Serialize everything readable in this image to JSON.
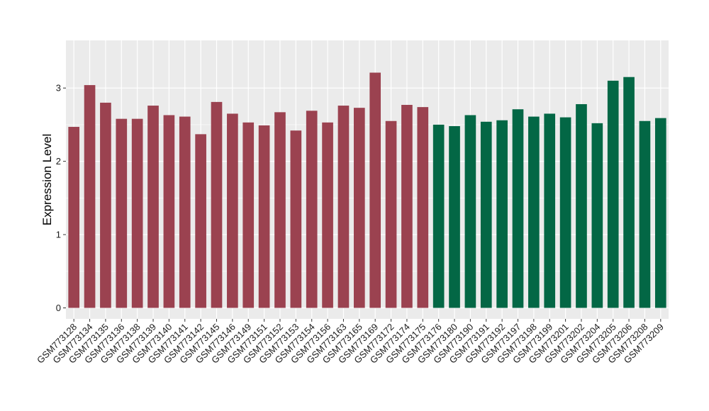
{
  "chart_data": {
    "type": "bar",
    "title": "",
    "xlabel": "",
    "ylabel": "Expression Level",
    "ylim": [
      -0.15,
      3.65
    ],
    "yticks": [
      0,
      1,
      2,
      3
    ],
    "grid": true,
    "legend": "none",
    "categories": [
      "GSM773128",
      "GSM773134",
      "GSM773135",
      "GSM773136",
      "GSM773138",
      "GSM773139",
      "GSM773140",
      "GSM773141",
      "GSM773142",
      "GSM773145",
      "GSM773146",
      "GSM773149",
      "GSM773151",
      "GSM773152",
      "GSM773153",
      "GSM773154",
      "GSM773156",
      "GSM773163",
      "GSM773165",
      "GSM773169",
      "GSM773172",
      "GSM773174",
      "GSM773175",
      "GSM773176",
      "GSM773180",
      "GSM773190",
      "GSM773191",
      "GSM773192",
      "GSM773197",
      "GSM773198",
      "GSM773199",
      "GSM773201",
      "GSM773202",
      "GSM773204",
      "GSM773205",
      "GSM773206",
      "GSM773208",
      "GSM773209"
    ],
    "values": [
      2.47,
      3.04,
      2.8,
      2.58,
      2.58,
      2.76,
      2.63,
      2.61,
      2.37,
      2.81,
      2.65,
      2.53,
      2.49,
      2.67,
      2.42,
      2.69,
      2.53,
      2.76,
      2.73,
      3.21,
      2.55,
      2.77,
      2.74,
      2.5,
      2.48,
      2.63,
      2.54,
      2.56,
      2.71,
      2.61,
      2.65,
      2.6,
      2.78,
      2.52,
      3.1,
      3.15,
      2.55,
      2.59
    ],
    "groups": [
      0,
      0,
      0,
      0,
      0,
      0,
      0,
      0,
      0,
      0,
      0,
      0,
      0,
      0,
      0,
      0,
      0,
      0,
      0,
      0,
      0,
      0,
      0,
      1,
      1,
      1,
      1,
      1,
      1,
      1,
      1,
      1,
      1,
      1,
      1,
      1,
      1,
      1
    ],
    "colors": [
      "#9b4250",
      "#036745"
    ],
    "panel_background": "#ebebeb",
    "grid_color": "#ffffff"
  }
}
